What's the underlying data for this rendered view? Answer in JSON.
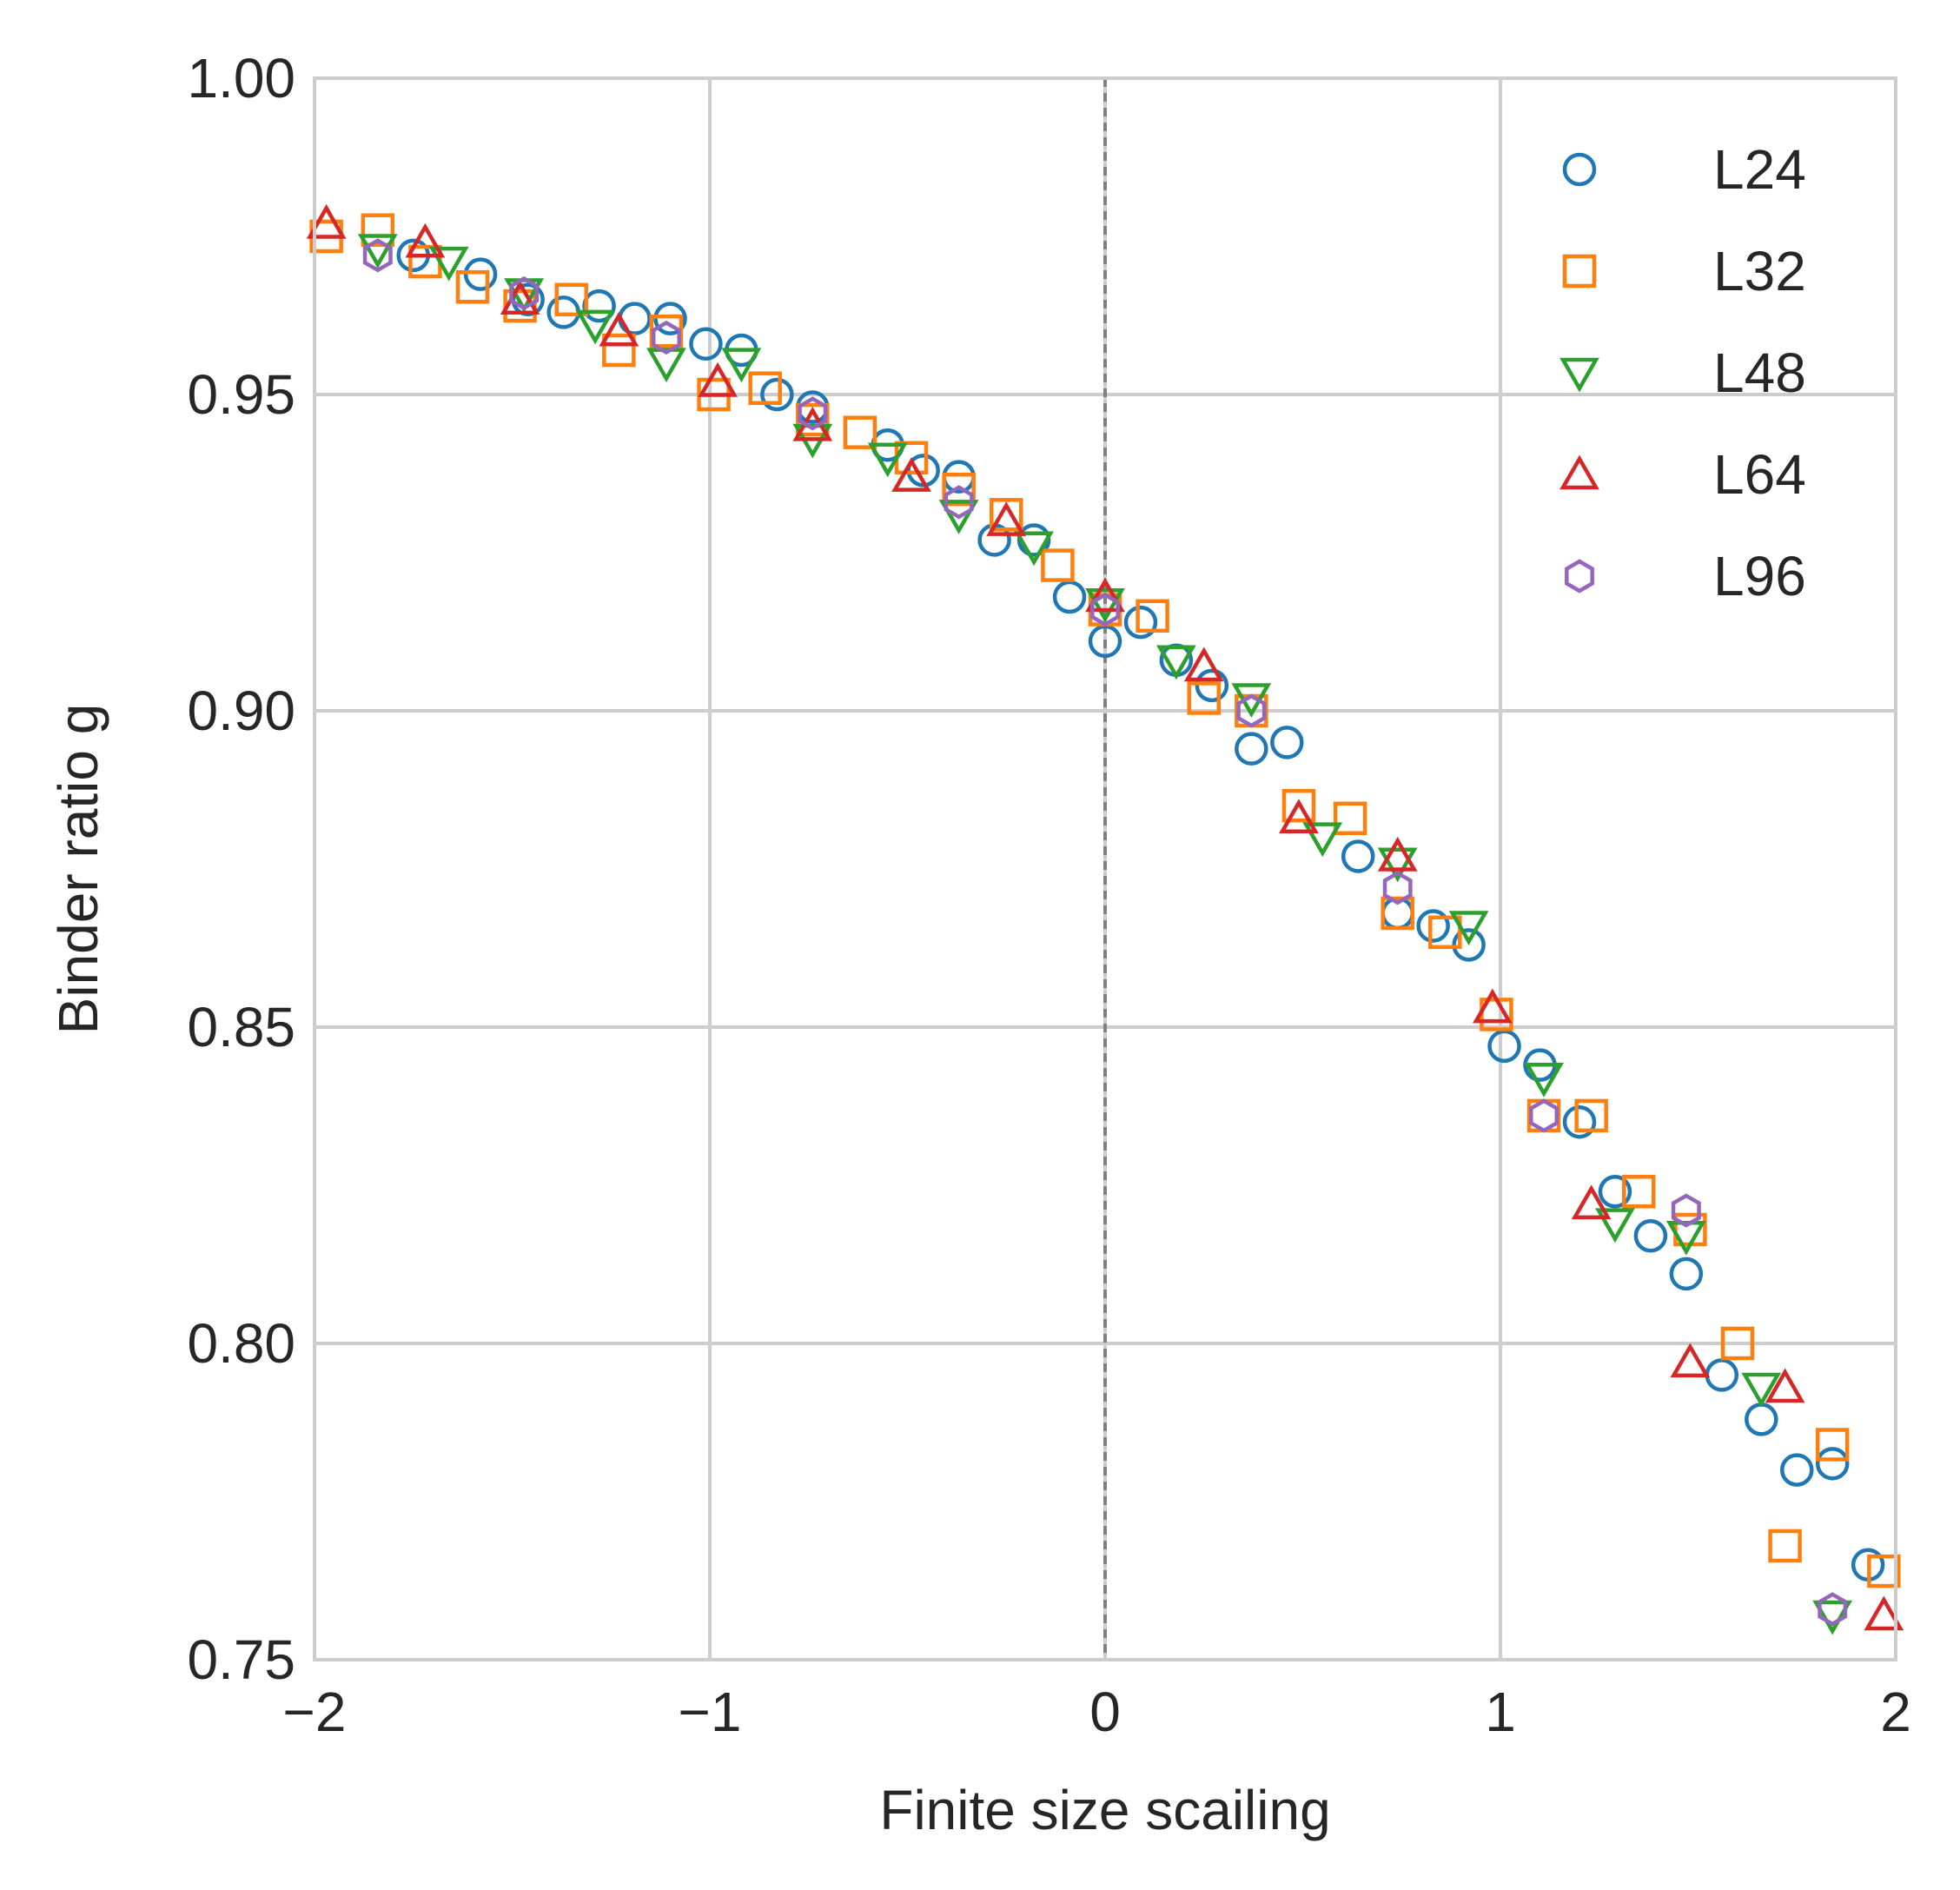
{
  "chart_data": {
    "type": "scatter",
    "xlabel": "Finite size scailing",
    "ylabel": "Binder ratio g",
    "xlim": [
      -2,
      2
    ],
    "ylim": [
      0.75,
      1.0
    ],
    "xticks": [
      "−2",
      "−1",
      "0",
      "1",
      "2"
    ],
    "yticks": [
      "0.75",
      "0.80",
      "0.85",
      "0.90",
      "0.95",
      "1.00"
    ],
    "grid": true,
    "reference_line": {
      "x": 0,
      "style": "dashed",
      "color": "#808080"
    },
    "legend_position": "top-right",
    "series": [
      {
        "name": "L24",
        "marker": "circle",
        "color": "#1f77b4",
        "points": [
          [
            -1.75,
            0.972
          ],
          [
            -1.58,
            0.969
          ],
          [
            -1.46,
            0.965
          ],
          [
            -1.37,
            0.963
          ],
          [
            -1.28,
            0.964
          ],
          [
            -1.19,
            0.962
          ],
          [
            -1.1,
            0.962
          ],
          [
            -1.01,
            0.958
          ],
          [
            -0.92,
            0.957
          ],
          [
            -0.83,
            0.95
          ],
          [
            -0.74,
            0.948
          ],
          [
            -0.55,
            0.942
          ],
          [
            -0.46,
            0.938
          ],
          [
            -0.37,
            0.937
          ],
          [
            -0.28,
            0.927
          ],
          [
            -0.18,
            0.927
          ],
          [
            -0.09,
            0.918
          ],
          [
            0.0,
            0.911
          ],
          [
            0.09,
            0.914
          ],
          [
            0.18,
            0.908
          ],
          [
            0.27,
            0.904
          ],
          [
            0.37,
            0.894
          ],
          [
            0.46,
            0.895
          ],
          [
            0.64,
            0.877
          ],
          [
            0.74,
            0.868
          ],
          [
            0.83,
            0.866
          ],
          [
            0.92,
            0.863
          ],
          [
            1.01,
            0.847
          ],
          [
            1.1,
            0.844
          ],
          [
            1.2,
            0.835
          ],
          [
            1.29,
            0.824
          ],
          [
            1.38,
            0.817
          ],
          [
            1.47,
            0.811
          ],
          [
            1.56,
            0.795
          ],
          [
            1.66,
            0.788
          ],
          [
            1.75,
            0.78
          ],
          [
            1.84,
            0.781
          ],
          [
            1.93,
            0.765
          ]
        ]
      },
      {
        "name": "L32",
        "marker": "square",
        "color": "#ff7f0e",
        "points": [
          [
            -1.97,
            0.975
          ],
          [
            -1.84,
            0.976
          ],
          [
            -1.72,
            0.971
          ],
          [
            -1.6,
            0.967
          ],
          [
            -1.48,
            0.964
          ],
          [
            -1.35,
            0.965
          ],
          [
            -1.23,
            0.957
          ],
          [
            -1.11,
            0.96
          ],
          [
            -0.99,
            0.95
          ],
          [
            -0.86,
            0.951
          ],
          [
            -0.74,
            0.946
          ],
          [
            -0.62,
            0.944
          ],
          [
            -0.49,
            0.94
          ],
          [
            -0.37,
            0.935
          ],
          [
            -0.25,
            0.931
          ],
          [
            -0.12,
            0.923
          ],
          [
            0.0,
            0.916
          ],
          [
            0.12,
            0.915
          ],
          [
            0.25,
            0.902
          ],
          [
            0.37,
            0.9
          ],
          [
            0.49,
            0.885
          ],
          [
            0.62,
            0.883
          ],
          [
            0.74,
            0.868
          ],
          [
            0.86,
            0.865
          ],
          [
            0.99,
            0.852
          ],
          [
            1.11,
            0.836
          ],
          [
            1.23,
            0.836
          ],
          [
            1.35,
            0.824
          ],
          [
            1.48,
            0.818
          ],
          [
            1.6,
            0.8
          ],
          [
            1.72,
            0.768
          ],
          [
            1.84,
            0.784
          ],
          [
            1.97,
            0.764
          ]
        ]
      },
      {
        "name": "L48",
        "marker": "triangle-down",
        "color": "#2ca02c",
        "points": [
          [
            -1.84,
            0.973
          ],
          [
            -1.66,
            0.971
          ],
          [
            -1.47,
            0.966
          ],
          [
            -1.29,
            0.961
          ],
          [
            -1.11,
            0.955
          ],
          [
            -0.92,
            0.955
          ],
          [
            -0.74,
            0.943
          ],
          [
            -0.55,
            0.94
          ],
          [
            -0.37,
            0.931
          ],
          [
            -0.18,
            0.926
          ],
          [
            0.0,
            0.917
          ],
          [
            0.18,
            0.908
          ],
          [
            0.37,
            0.902
          ],
          [
            0.55,
            0.88
          ],
          [
            0.74,
            0.876
          ],
          [
            0.92,
            0.866
          ],
          [
            1.11,
            0.842
          ],
          [
            1.29,
            0.819
          ],
          [
            1.47,
            0.817
          ],
          [
            1.66,
            0.793
          ],
          [
            1.84,
            0.757
          ]
        ]
      },
      {
        "name": "L64",
        "marker": "triangle-up",
        "color": "#d62728",
        "points": [
          [
            -1.97,
            0.977
          ],
          [
            -1.72,
            0.974
          ],
          [
            -1.48,
            0.965
          ],
          [
            -1.23,
            0.96
          ],
          [
            -0.98,
            0.952
          ],
          [
            -0.74,
            0.945
          ],
          [
            -0.49,
            0.937
          ],
          [
            -0.25,
            0.93
          ],
          [
            0.0,
            0.918
          ],
          [
            0.25,
            0.907
          ],
          [
            0.49,
            0.883
          ],
          [
            0.74,
            0.877
          ],
          [
            0.98,
            0.853
          ],
          [
            1.23,
            0.822
          ],
          [
            1.48,
            0.797
          ],
          [
            1.72,
            0.793
          ],
          [
            1.97,
            0.757
          ]
        ]
      },
      {
        "name": "L96",
        "marker": "hexagon",
        "color": "#9467bd",
        "points": [
          [
            -1.84,
            0.972
          ],
          [
            -1.47,
            0.966
          ],
          [
            -1.11,
            0.959
          ],
          [
            -0.74,
            0.947
          ],
          [
            -0.37,
            0.933
          ],
          [
            0.0,
            0.916
          ],
          [
            0.37,
            0.9
          ],
          [
            0.74,
            0.872
          ],
          [
            1.11,
            0.836
          ],
          [
            1.47,
            0.821
          ],
          [
            1.84,
            0.758
          ]
        ]
      }
    ]
  }
}
